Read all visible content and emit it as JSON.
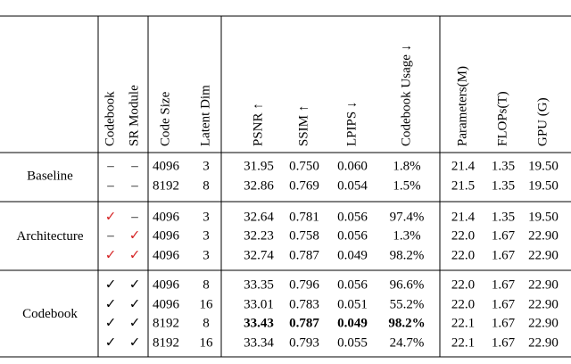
{
  "table": {
    "headers": [
      "Codebook",
      "SR Module",
      "Code Size",
      "Latent Dim",
      "PSNR ↑",
      "SSIM ↑",
      "LPIPS ↓",
      "Codebook Usage ↓",
      "Parameters(M)",
      "FLOPs(T)",
      "GPU (G)"
    ],
    "groups": [
      {
        "label": "Baseline",
        "rows": [
          {
            "cells": [
              "–",
              "–",
              "4096",
              "3",
              "31.95",
              "0.750",
              "0.060",
              "1.8%",
              "21.4",
              "1.35",
              "19.50"
            ]
          },
          {
            "cells": [
              "–",
              "–",
              "8192",
              "8",
              "32.86",
              "0.769",
              "0.054",
              "1.5%",
              "21.5",
              "1.35",
              "19.50"
            ]
          }
        ]
      },
      {
        "label": "Architecture",
        "check_color": "#d62728",
        "rows": [
          {
            "cells": [
              "✓",
              "–",
              "4096",
              "3",
              "32.64",
              "0.781",
              "0.056",
              "97.4%",
              "21.4",
              "1.35",
              "19.50"
            ]
          },
          {
            "cells": [
              "–",
              "✓",
              "4096",
              "3",
              "32.23",
              "0.758",
              "0.056",
              "1.3%",
              "22.0",
              "1.67",
              "22.90"
            ]
          },
          {
            "cells": [
              "✓",
              "✓",
              "4096",
              "3",
              "32.74",
              "0.787",
              "0.049",
              "98.2%",
              "22.0",
              "1.67",
              "22.90"
            ]
          }
        ]
      },
      {
        "label": "Codebook",
        "check_color": "#000000",
        "rows": [
          {
            "cells": [
              "✓",
              "✓",
              "4096",
              "8",
              "33.35",
              "0.796",
              "0.056",
              "96.6%",
              "22.0",
              "1.67",
              "22.90"
            ]
          },
          {
            "cells": [
              "✓",
              "✓",
              "4096",
              "16",
              "33.01",
              "0.783",
              "0.051",
              "55.2%",
              "22.0",
              "1.67",
              "22.90"
            ]
          },
          {
            "cells": [
              "✓",
              "✓",
              "8192",
              "8",
              "33.43",
              "0.787",
              "0.049",
              "98.2%",
              "22.1",
              "1.67",
              "22.90"
            ],
            "bold": [
              4,
              5,
              6,
              7
            ]
          },
          {
            "cells": [
              "✓",
              "✓",
              "8192",
              "16",
              "33.34",
              "0.793",
              "0.055",
              "24.7%",
              "22.1",
              "1.67",
              "22.90"
            ]
          }
        ]
      }
    ]
  }
}
